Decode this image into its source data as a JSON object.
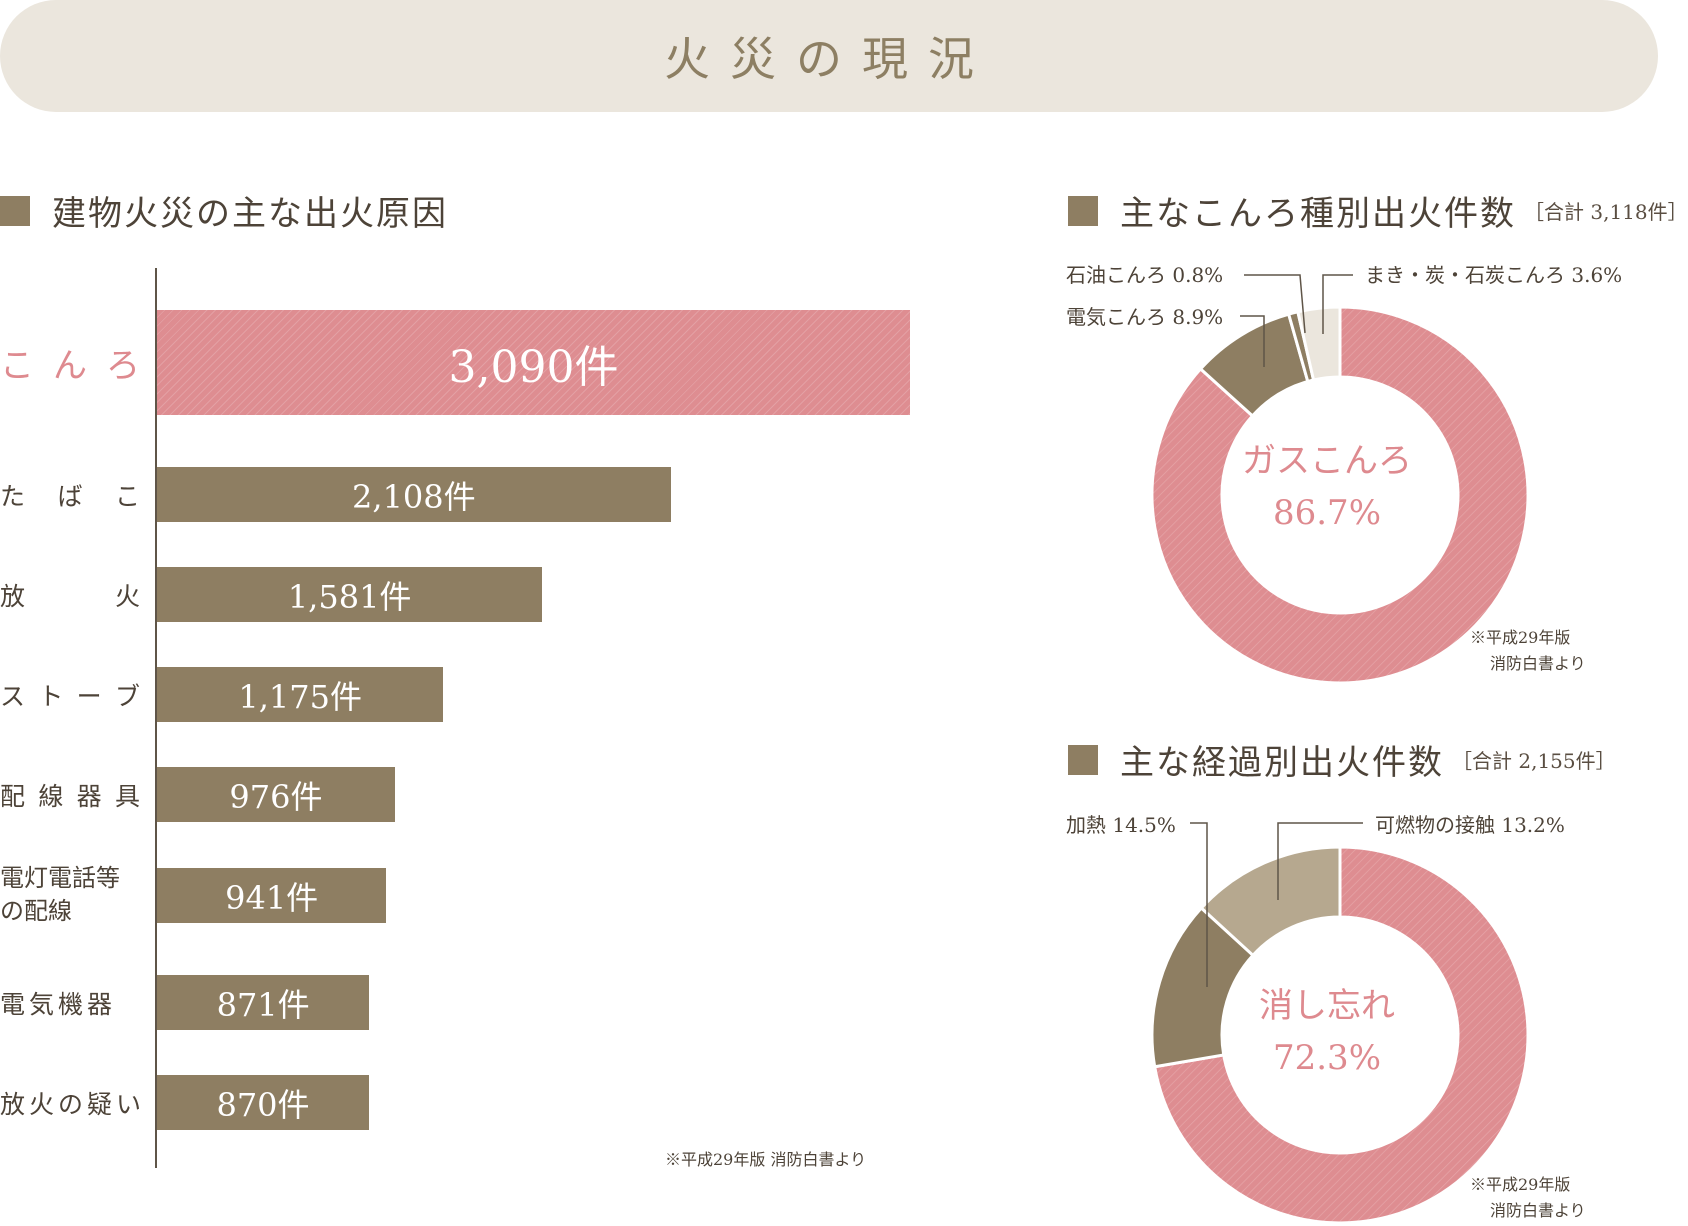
{
  "banner": {
    "title": "火災の現況"
  },
  "left_section": {
    "title": "建物火災の主な出火原因",
    "note": "※平成29年版 消防白書より"
  },
  "right_top": {
    "title": "主なこんろ種別出火件数",
    "total": "［合計 3,118件］",
    "center_name": "ガスこんろ",
    "center_value": "86.7%",
    "note_line1": "※平成29年版",
    "note_line2": "消防白書より",
    "callouts": [
      "石油こんろ 0.8%",
      "電気こんろ 8.9%",
      "まき・炭・石炭こんろ 3.6%"
    ]
  },
  "right_bottom": {
    "title": "主な経過別出火件数",
    "total": "［合計 2,155件］",
    "center_name": "消し忘れ",
    "center_value": "72.3%",
    "note_line1": "※平成29年版",
    "note_line2": "消防白書より",
    "callouts": [
      "加熱 14.5%",
      "可燃物の接触 13.2%"
    ]
  },
  "chart_data": [
    {
      "type": "bar",
      "orientation": "horizontal",
      "title": "建物火災の主な出火原因",
      "categories": [
        "こんろ",
        "たばこ",
        "放火",
        "ストーブ",
        "配線器具",
        "電灯電話等の配線",
        "電気機器",
        "放火の疑い"
      ],
      "values": [
        3090,
        2108,
        1581,
        1175,
        976,
        941,
        871,
        870
      ],
      "value_labels": [
        "3,090件",
        "2,108件",
        "1,581件",
        "1,175件",
        "976件",
        "941件",
        "871件",
        "870件"
      ],
      "highlight_index": 0,
      "colors": {
        "highlight": "#de8d91",
        "bar": "#8e7e62"
      }
    },
    {
      "type": "pie",
      "title": "主なこんろ種別出火件数",
      "total_label": "［合計 3,118件］",
      "labels": [
        "ガスこんろ",
        "電気こんろ",
        "石油こんろ",
        "まき・炭・石炭こんろ"
      ],
      "values": [
        86.7,
        8.9,
        0.8,
        3.6
      ],
      "colors": [
        "#de8d91",
        "#8e7e62",
        "#8e7e62",
        "#ebe6dd"
      ],
      "donut": true
    },
    {
      "type": "pie",
      "title": "主な経過別出火件数",
      "total_label": "［合計 2,155件］",
      "labels": [
        "消し忘れ",
        "加熱",
        "可燃物の接触"
      ],
      "values": [
        72.3,
        14.5,
        13.2
      ],
      "colors": [
        "#de8d91",
        "#8e7e62",
        "#b6a88f"
      ],
      "donut": true
    }
  ]
}
